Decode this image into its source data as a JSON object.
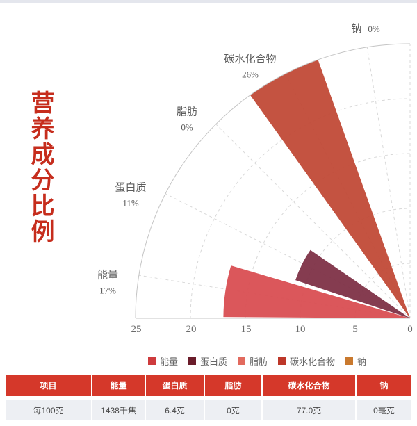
{
  "page": {
    "title_vertical": "营养成分比例"
  },
  "chart_data": {
    "type": "bar",
    "polar": true,
    "shape": "quarter-rose-fan",
    "angular_span_deg": 90,
    "title": "营养成分比例",
    "categories": [
      "能量",
      "蛋白质",
      "脂肪",
      "碳水化合物",
      "钠"
    ],
    "values": [
      17,
      11,
      0,
      26,
      0
    ],
    "axis_ticks": [
      "25",
      "20",
      "15",
      "10",
      "5",
      "0"
    ],
    "axis_range": [
      0,
      25
    ],
    "grid": "dashed radial lines and dashed arcs, solid outer quarter arc",
    "legend_position": "bottom-center",
    "series": [
      {
        "name": "能量",
        "percent": 17,
        "pct_label": "17%",
        "color": "#d94e52",
        "legend_color": "#ce3b3d"
      },
      {
        "name": "蛋白质",
        "percent": 11,
        "pct_label": "11%",
        "color": "#7e3147",
        "legend_color": "#6a1c2a"
      },
      {
        "name": "脂肪",
        "percent": 0,
        "pct_label": "0%",
        "color": "#e26a5e",
        "legend_color": "#e26a5e"
      },
      {
        "name": "碳水化合物",
        "percent": 26,
        "pct_label": "26%",
        "color": "#c14a37",
        "legend_color": "#bd3729"
      },
      {
        "name": "钠",
        "percent": 0,
        "pct_label": "0%",
        "color": "#c9792e",
        "legend_color": "#c9792e"
      }
    ]
  },
  "table": {
    "headers": [
      "项目",
      "能量",
      "蛋白质",
      "脂肪",
      "碳水化合物",
      "钠"
    ],
    "rows": [
      [
        "每100克",
        "1438千焦",
        "6.4克",
        "0克",
        "77.0克",
        "0毫克"
      ]
    ]
  },
  "colors": {
    "accent_red": "#d5382a",
    "title_red": "#c62d1d",
    "top_strip": "#e4e6ed",
    "table_row_bg": "#edeff3"
  }
}
